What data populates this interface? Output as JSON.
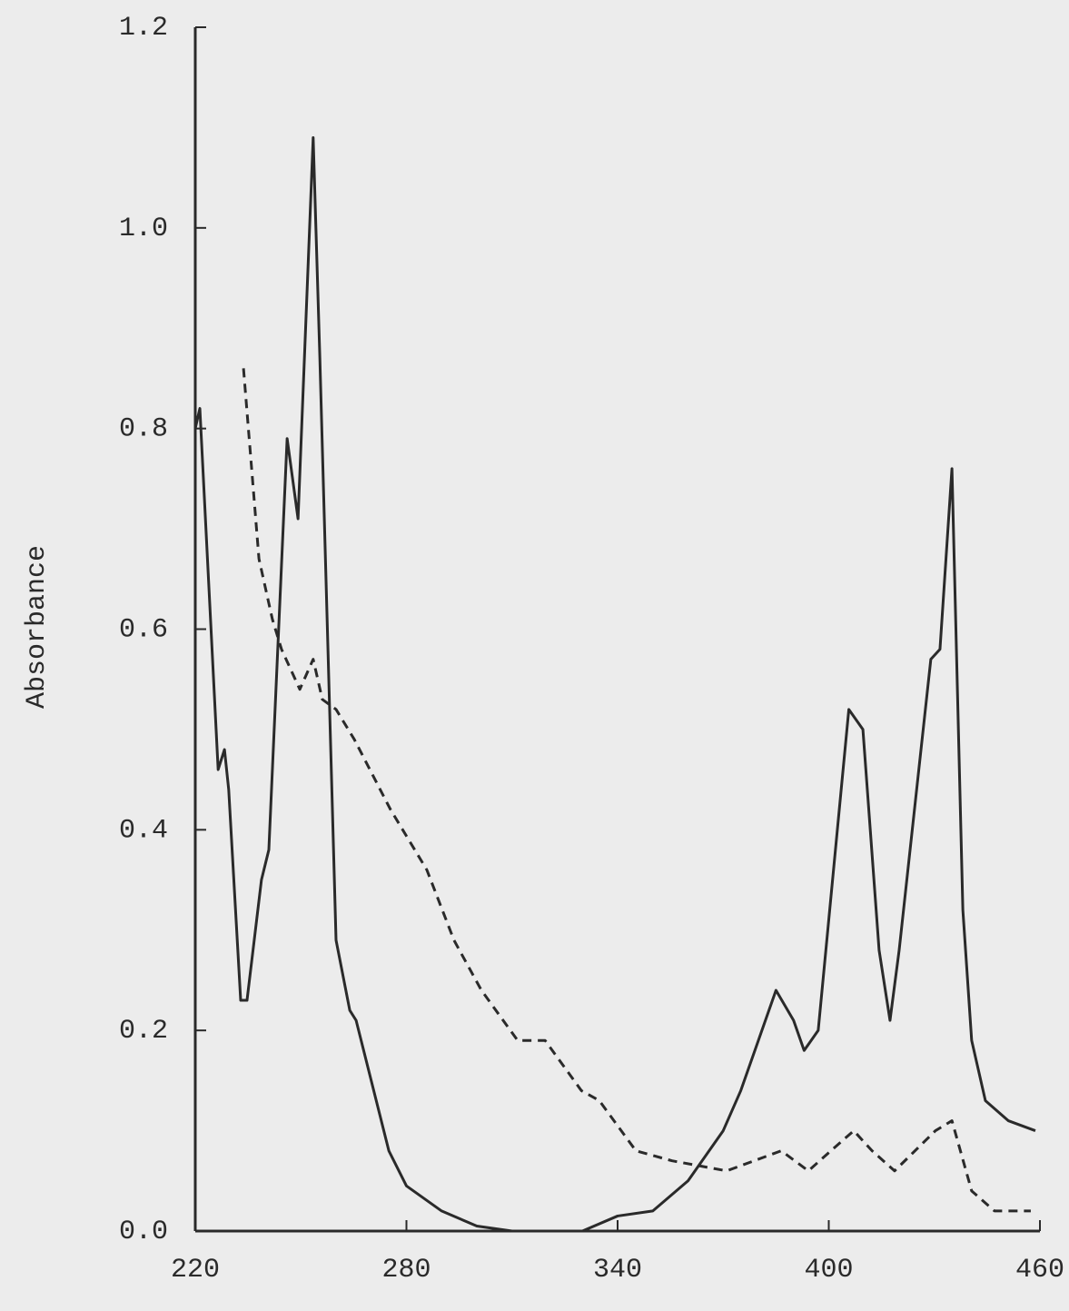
{
  "chart_data": {
    "type": "line",
    "y_label": "Absorbance",
    "series": [
      {
        "color": "#2a2a2a",
        "style": "solid",
        "x": [
          220,
          221.3,
          226.5,
          228.3,
          229.5,
          232.9,
          234.7,
          238.8,
          240.9,
          246.1,
          249.2,
          253.5,
          255.4,
          260,
          263.9,
          265.7,
          275,
          280,
          290,
          300,
          310,
          320,
          330,
          340,
          350,
          360,
          370,
          375,
          380,
          385,
          390,
          393,
          397,
          405.7,
          409.7,
          414.3,
          417.4,
          420,
          429,
          431.6,
          435,
          438.1,
          440.6,
          444.5,
          451,
          458.7
        ],
        "values": [
          0.8,
          0.82,
          0.46,
          0.48,
          0.44,
          0.23,
          0.23,
          0.35,
          0.38,
          0.79,
          0.71,
          1.09,
          0.87,
          0.29,
          0.22,
          0.21,
          0.08,
          0.045,
          0.02,
          0.005,
          0.0,
          0.0,
          0.0,
          0.015,
          0.02,
          0.05,
          0.1,
          0.14,
          0.19,
          0.24,
          0.21,
          0.18,
          0.2,
          0.52,
          0.5,
          0.28,
          0.21,
          0.28,
          0.57,
          0.58,
          0.76,
          0.32,
          0.19,
          0.13,
          0.11,
          0.1
        ]
      },
      {
        "color": "#2a2a2a",
        "style": "dashed",
        "x": [
          233.7,
          238.1,
          241.9,
          244.5,
          249.7,
          253.5,
          256.1,
          260,
          265.2,
          275.5,
          285.8,
          293.5,
          301.3,
          311.6,
          319.4,
          329.7,
          334.8,
          345.2,
          355.5,
          371,
          386.5,
          394.2,
          400.6,
          407.1,
          412.3,
          418.7,
          430.3,
          435,
          440.6,
          447.1,
          457.4
        ],
        "values": [
          0.86,
          0.67,
          0.61,
          0.58,
          0.54,
          0.57,
          0.53,
          0.52,
          0.49,
          0.42,
          0.36,
          0.29,
          0.24,
          0.19,
          0.19,
          0.14,
          0.13,
          0.08,
          0.07,
          0.06,
          0.08,
          0.06,
          0.08,
          0.1,
          0.08,
          0.06,
          0.1,
          0.11,
          0.04,
          0.02,
          0.02
        ]
      }
    ],
    "xlim": [
      220,
      460
    ],
    "xticks": [
      220,
      280,
      340,
      400,
      460
    ],
    "ylim": [
      0,
      1.2
    ],
    "yticks": [
      {
        "value": 0,
        "label": "0.0"
      },
      {
        "value": 0.2,
        "label": "0.2"
      },
      {
        "value": 0.4,
        "label": "0.4"
      },
      {
        "value": 0.6,
        "label": "0.6"
      },
      {
        "value": 0.8,
        "label": "0.8"
      },
      {
        "value": 1.0,
        "label": "1.0"
      },
      {
        "value": 1.2,
        "label": "1.2"
      }
    ],
    "grid": false
  }
}
